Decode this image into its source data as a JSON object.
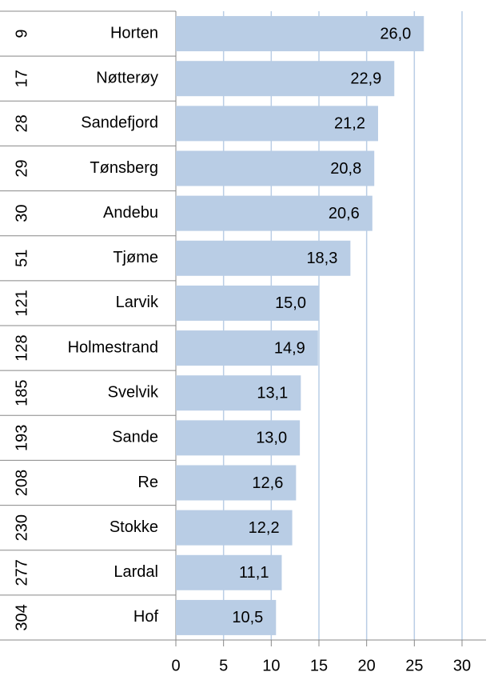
{
  "chart_data": {
    "type": "bar",
    "orientation": "horizontal",
    "ranks": [
      9,
      17,
      28,
      29,
      30,
      51,
      121,
      128,
      185,
      193,
      208,
      230,
      277,
      304
    ],
    "categories": [
      "Horten",
      "Nøtterøy",
      "Sandefjord",
      "Tønsberg",
      "Andebu",
      "Tjøme",
      "Larvik",
      "Holmestrand",
      "Svelvik",
      "Sande",
      "Re",
      "Stokke",
      "Lardal",
      "Hof"
    ],
    "values": [
      26.0,
      22.9,
      21.2,
      20.8,
      20.6,
      18.3,
      15.0,
      14.9,
      13.1,
      13.0,
      12.6,
      12.2,
      11.1,
      10.5
    ],
    "value_labels": [
      "26,0",
      "22,9",
      "21,2",
      "20,8",
      "20,6",
      "18,3",
      "15,0",
      "14,9",
      "13,1",
      "13,0",
      "12,6",
      "12,2",
      "11,1",
      "10,5"
    ],
    "color": "#b9cde5",
    "xlim": [
      0,
      30
    ],
    "xticks": [
      0,
      5,
      10,
      15,
      20,
      25,
      30
    ],
    "grid": true
  }
}
